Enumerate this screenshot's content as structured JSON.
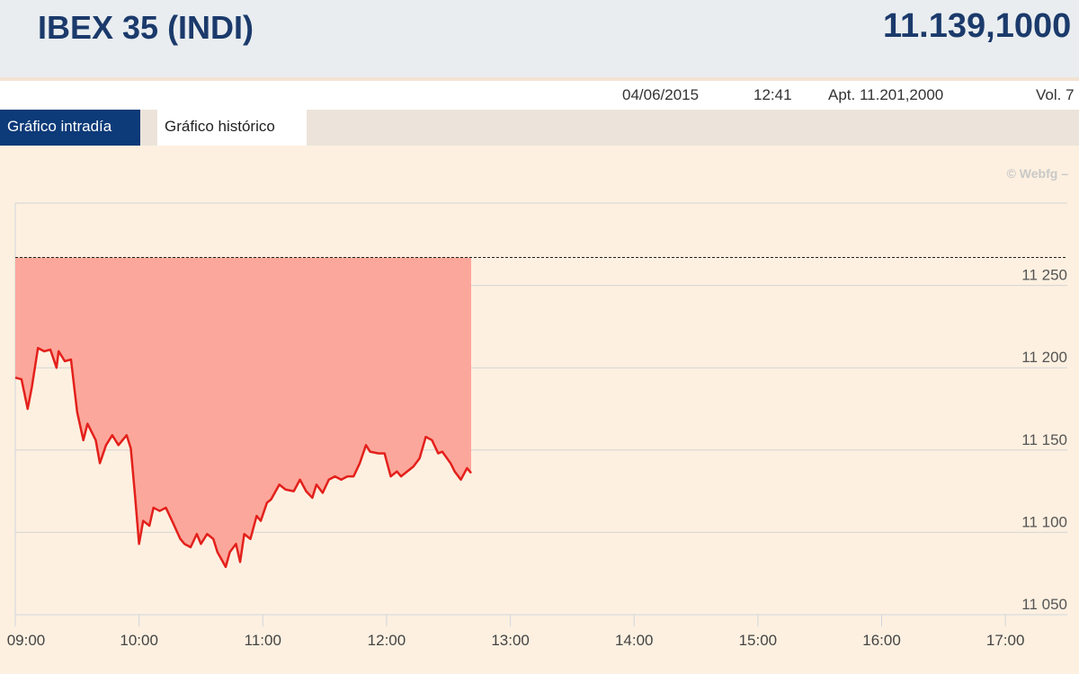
{
  "header": {
    "title": "IBEX 35 (INDI)",
    "price": "11.139,1000"
  },
  "info": {
    "date": "04/06/2015",
    "time": "12:41",
    "open": "Apt. 11.201,2000",
    "volume": "Vol. 7"
  },
  "tabs": [
    "Gráfico intradía",
    "Gráfico histórico"
  ],
  "watermark": "© Webfg –",
  "chart_data": {
    "type": "area",
    "x": [
      "09:00",
      "09:03",
      "09:06",
      "09:08",
      "09:11",
      "09:14",
      "09:17",
      "09:20",
      "09:21",
      "09:24",
      "09:27",
      "09:30",
      "09:33",
      "09:35",
      "09:39",
      "09:41",
      "09:44",
      "09:47",
      "09:50",
      "09:54",
      "09:56",
      "09:58",
      "10:00",
      "10:02",
      "10:05",
      "10:07",
      "10:10",
      "10:13",
      "10:16",
      "10:20",
      "10:22",
      "10:25",
      "10:28",
      "10:30",
      "10:33",
      "10:36",
      "10:38",
      "10:42",
      "10:44",
      "10:47",
      "10:49",
      "10:51",
      "10:54",
      "10:57",
      "10:59",
      "11:02",
      "11:04",
      "11:08",
      "11:11",
      "11:15",
      "11:18",
      "11:21",
      "11:24",
      "11:26",
      "11:29",
      "11:32",
      "11:35",
      "11:38",
      "11:41",
      "11:44",
      "11:47",
      "11:50",
      "11:52",
      "11:56",
      "11:59",
      "12:02",
      "12:05",
      "12:07",
      "12:10",
      "12:13",
      "12:16",
      "12:19",
      "12:22",
      "12:25",
      "12:27",
      "12:31",
      "12:33",
      "12:36",
      "12:39",
      "12:41"
    ],
    "values": [
      11194,
      11193,
      11175,
      11188,
      11212,
      11210,
      11211,
      11200,
      11210,
      11204,
      11205,
      11173,
      11156,
      11166,
      11156,
      11142,
      11153,
      11159,
      11153,
      11159,
      11151,
      11123,
      11093,
      11107,
      11104,
      11115,
      11113,
      11115,
      11107,
      11096,
      11093,
      11091,
      11099,
      11093,
      11099,
      11096,
      11088,
      11079,
      11088,
      11093,
      11082,
      11099,
      11096,
      11110,
      11107,
      11118,
      11120,
      11129,
      11126,
      11125,
      11132,
      11125,
      11121,
      11129,
      11124,
      11132,
      11134,
      11132,
      11134,
      11134,
      11142,
      11153,
      11149,
      11148,
      11148,
      11134,
      11137,
      11134,
      11137,
      11140,
      11145,
      11158,
      11156,
      11148,
      11149,
      11142,
      11137,
      11132,
      11139,
      11136
    ],
    "color": "#e3201b",
    "fill_color": "#fca79b",
    "reference_line": 11267,
    "xlim": [
      "09:00",
      "17:30"
    ],
    "xticks": [
      "09:00",
      "10:00",
      "11:00",
      "12:00",
      "13:00",
      "14:00",
      "15:00",
      "16:00",
      "17:00"
    ],
    "ylim": [
      11050,
      11300
    ],
    "yticks": [
      {
        "value": 11050,
        "label": "11 050"
      },
      {
        "value": 11100,
        "label": "11 100"
      },
      {
        "value": 11150,
        "label": "11 150"
      },
      {
        "value": 11200,
        "label": "11 200"
      },
      {
        "value": 11250,
        "label": "11 250"
      }
    ],
    "grid": true
  }
}
